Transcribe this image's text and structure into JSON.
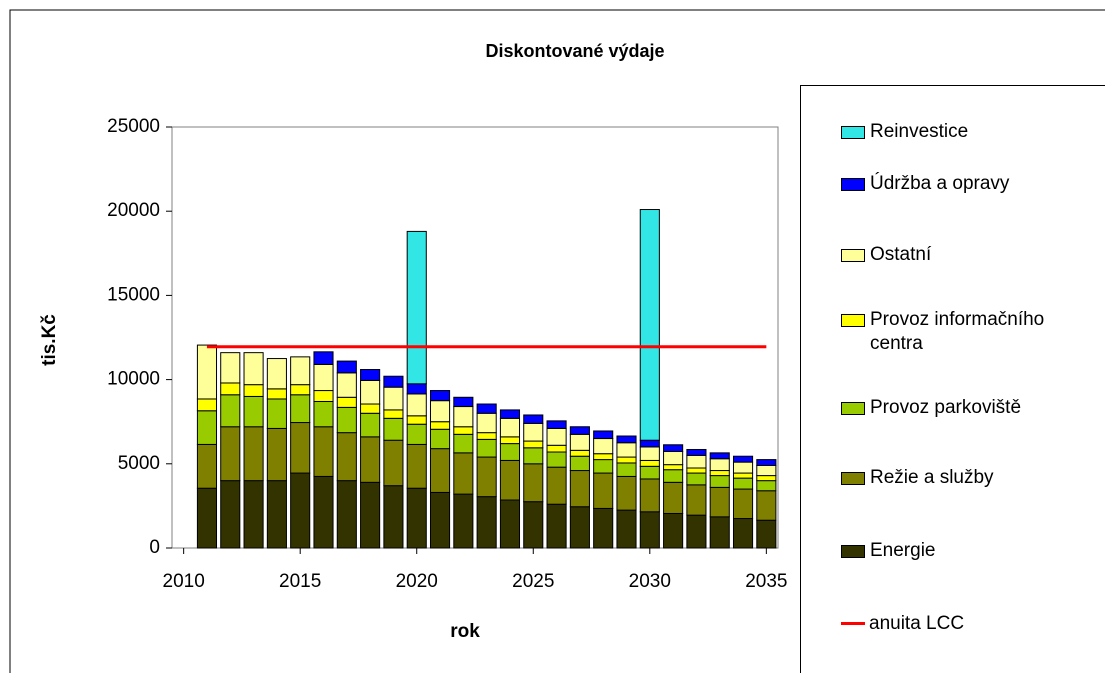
{
  "chart_data": {
    "type": "bar",
    "stacked": true,
    "title": "Diskontované výdaje",
    "x_label": "rok",
    "y_label": "tis.Kč",
    "x": [
      2011,
      2012,
      2013,
      2014,
      2015,
      2016,
      2017,
      2018,
      2019,
      2020,
      2021,
      2022,
      2023,
      2024,
      2025,
      2026,
      2027,
      2028,
      2029,
      2030,
      2031,
      2032,
      2033,
      2034,
      2035
    ],
    "xlim": [
      2009.5,
      2035.5
    ],
    "xticks": [
      2010,
      2015,
      2020,
      2025,
      2030,
      2035
    ],
    "ylim": [
      0,
      25000
    ],
    "yticks": [
      0,
      5000,
      10000,
      15000,
      20000,
      25000
    ],
    "series": [
      {
        "name": "Energie",
        "color": "#333300",
        "values": [
          3550,
          4000,
          4000,
          4000,
          4450,
          4250,
          4000,
          3900,
          3700,
          3550,
          3300,
          3200,
          3050,
          2850,
          2750,
          2600,
          2450,
          2350,
          2250,
          2150,
          2050,
          1950,
          1850,
          1750,
          1650
        ]
      },
      {
        "name": "Režie a služby",
        "color": "#808000",
        "values": [
          2600,
          3200,
          3200,
          3100,
          3000,
          2950,
          2850,
          2700,
          2700,
          2600,
          2600,
          2450,
          2350,
          2350,
          2250,
          2200,
          2150,
          2100,
          2000,
          1950,
          1850,
          1800,
          1750,
          1750,
          1750
        ]
      },
      {
        "name": "Provoz parkoviště",
        "color": "#99cc00",
        "values": [
          2000,
          1900,
          1800,
          1750,
          1650,
          1500,
          1500,
          1400,
          1300,
          1200,
          1150,
          1100,
          1050,
          1000,
          950,
          900,
          850,
          800,
          800,
          750,
          750,
          700,
          700,
          650,
          600
        ]
      },
      {
        "name": "Provoz informačního centra",
        "color": "#ffff00",
        "values": [
          700,
          700,
          700,
          600,
          600,
          650,
          600,
          550,
          500,
          500,
          450,
          450,
          400,
          400,
          400,
          400,
          350,
          350,
          350,
          350,
          300,
          300,
          300,
          300,
          300
        ]
      },
      {
        "name": "Ostatní",
        "color": "#ffff99",
        "values": [
          3200,
          1800,
          1900,
          1800,
          1650,
          1550,
          1450,
          1400,
          1350,
          1300,
          1250,
          1200,
          1150,
          1100,
          1050,
          1000,
          950,
          900,
          850,
          800,
          780,
          750,
          700,
          650,
          600
        ]
      },
      {
        "name": "Údržba a opravy",
        "color": "#0000ff",
        "values": [
          0,
          0,
          0,
          0,
          0,
          750,
          700,
          650,
          650,
          600,
          600,
          550,
          550,
          500,
          500,
          450,
          450,
          450,
          400,
          400,
          400,
          350,
          350,
          350,
          350
        ]
      },
      {
        "name": "Reinvestice",
        "color": "#33e6e6",
        "values": [
          0,
          0,
          0,
          0,
          0,
          0,
          0,
          0,
          0,
          9050,
          0,
          0,
          0,
          0,
          0,
          0,
          0,
          0,
          0,
          13700,
          0,
          0,
          0,
          0,
          0
        ]
      },
      {
        "name": "anuita LCC",
        "type": "line",
        "color": "#ff0000",
        "values": [
          11950,
          11950,
          11950,
          11950,
          11950,
          11950,
          11950,
          11950,
          11950,
          11950,
          11950,
          11950,
          11950,
          11950,
          11950,
          11950,
          11950,
          11950,
          11950,
          11950,
          11950,
          11950,
          11950,
          11950,
          11950
        ]
      }
    ]
  }
}
